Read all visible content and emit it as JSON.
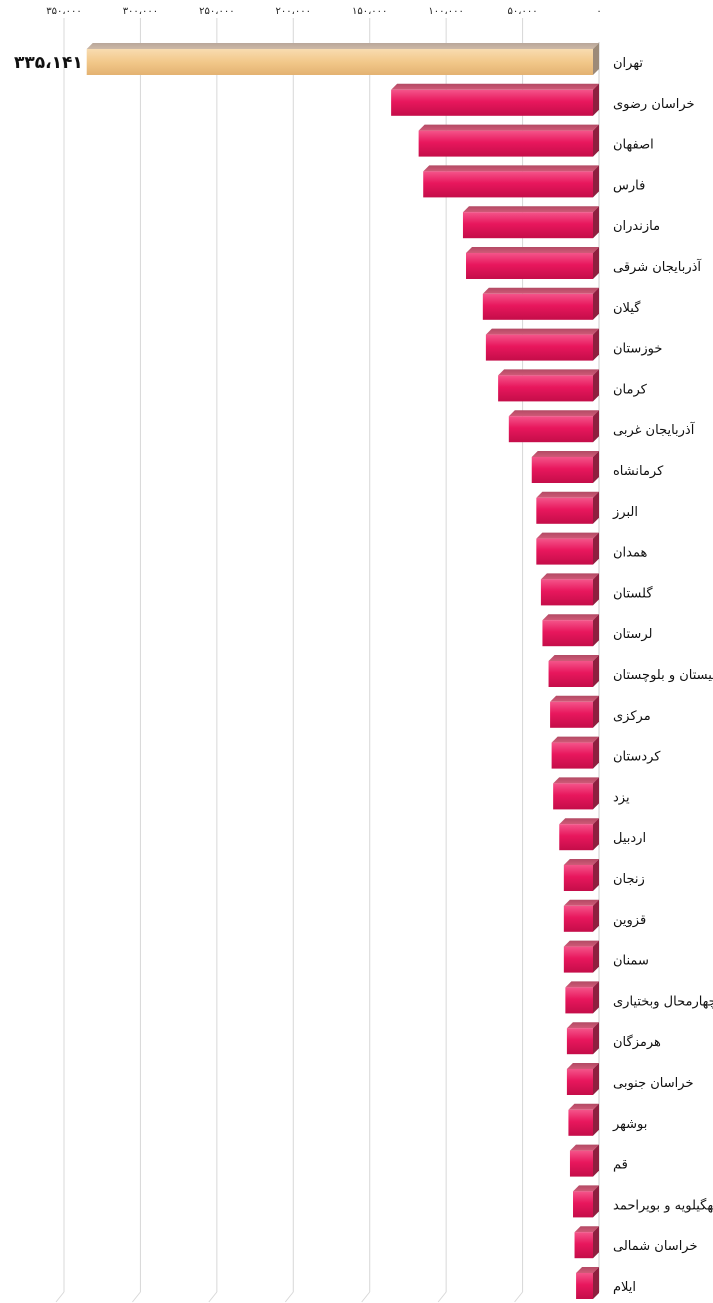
{
  "chart_data": {
    "type": "bar",
    "orientation": "horizontal",
    "x_axis_position": "top",
    "direction": "right-to-left",
    "xlim": [
      0,
      350000
    ],
    "x_ticks": [
      0,
      50000,
      100000,
      150000,
      200000,
      250000,
      300000,
      350000
    ],
    "x_tick_labels": [
      "۰",
      "۵۰،۰۰۰",
      "۱۰۰،۰۰۰",
      "۱۵۰،۰۰۰",
      "۲۰۰،۰۰۰",
      "۲۵۰،۰۰۰",
      "۳۰۰،۰۰۰",
      "۳۵۰،۰۰۰"
    ],
    "grid": true,
    "highlight_color": "#f2c88a",
    "bar_color": "#e8175d",
    "categories": [
      "تهران",
      "خراسان رضوی",
      "اصفهان",
      "فارس",
      "مازندران",
      "آذربایجان شرقی",
      "گیلان",
      "خوزستان",
      "کرمان",
      "آذربایجان غربی",
      "کرمانشاه",
      "البرز",
      "همدان",
      "گلستان",
      "لرستان",
      "سیستان و بلوچستان",
      "مرکزی",
      "کردستان",
      "یزد",
      "اردبیل",
      "زنجان",
      "قزوین",
      "سمنان",
      "چهارمحال وبختیاری",
      "هرمزگان",
      "خراسان جنوبی",
      "بوشهر",
      "قم",
      "کهگیلویه و بویراحمد",
      "خراسان شمالی",
      "ایلام"
    ],
    "values": [
      335141,
      136000,
      118000,
      115000,
      89000,
      87000,
      76000,
      74000,
      66000,
      59000,
      44000,
      41000,
      41000,
      38000,
      37000,
      33000,
      32000,
      31000,
      30000,
      26000,
      23000,
      23000,
      23000,
      22000,
      21000,
      21000,
      20000,
      19000,
      17000,
      16000,
      15000
    ],
    "highlight_index": 0,
    "data_labels": [
      {
        "index": 0,
        "text": "۳۳۵،۱۴۱"
      }
    ]
  }
}
